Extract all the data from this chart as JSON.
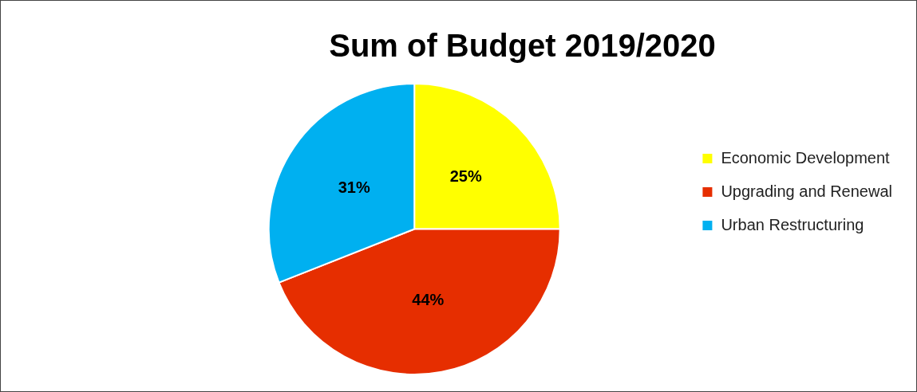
{
  "chart_data": {
    "type": "pie",
    "title": "Sum of Budget 2019/2020",
    "categories": [
      "Economic Development",
      "Upgrading and Renewal",
      "Urban Restructuring"
    ],
    "values": [
      25,
      44,
      31
    ],
    "colors": [
      "#ffff00",
      "#e62e00",
      "#00b0f0"
    ],
    "value_labels": [
      "25%",
      "44%",
      "31%"
    ],
    "legend": "right"
  }
}
